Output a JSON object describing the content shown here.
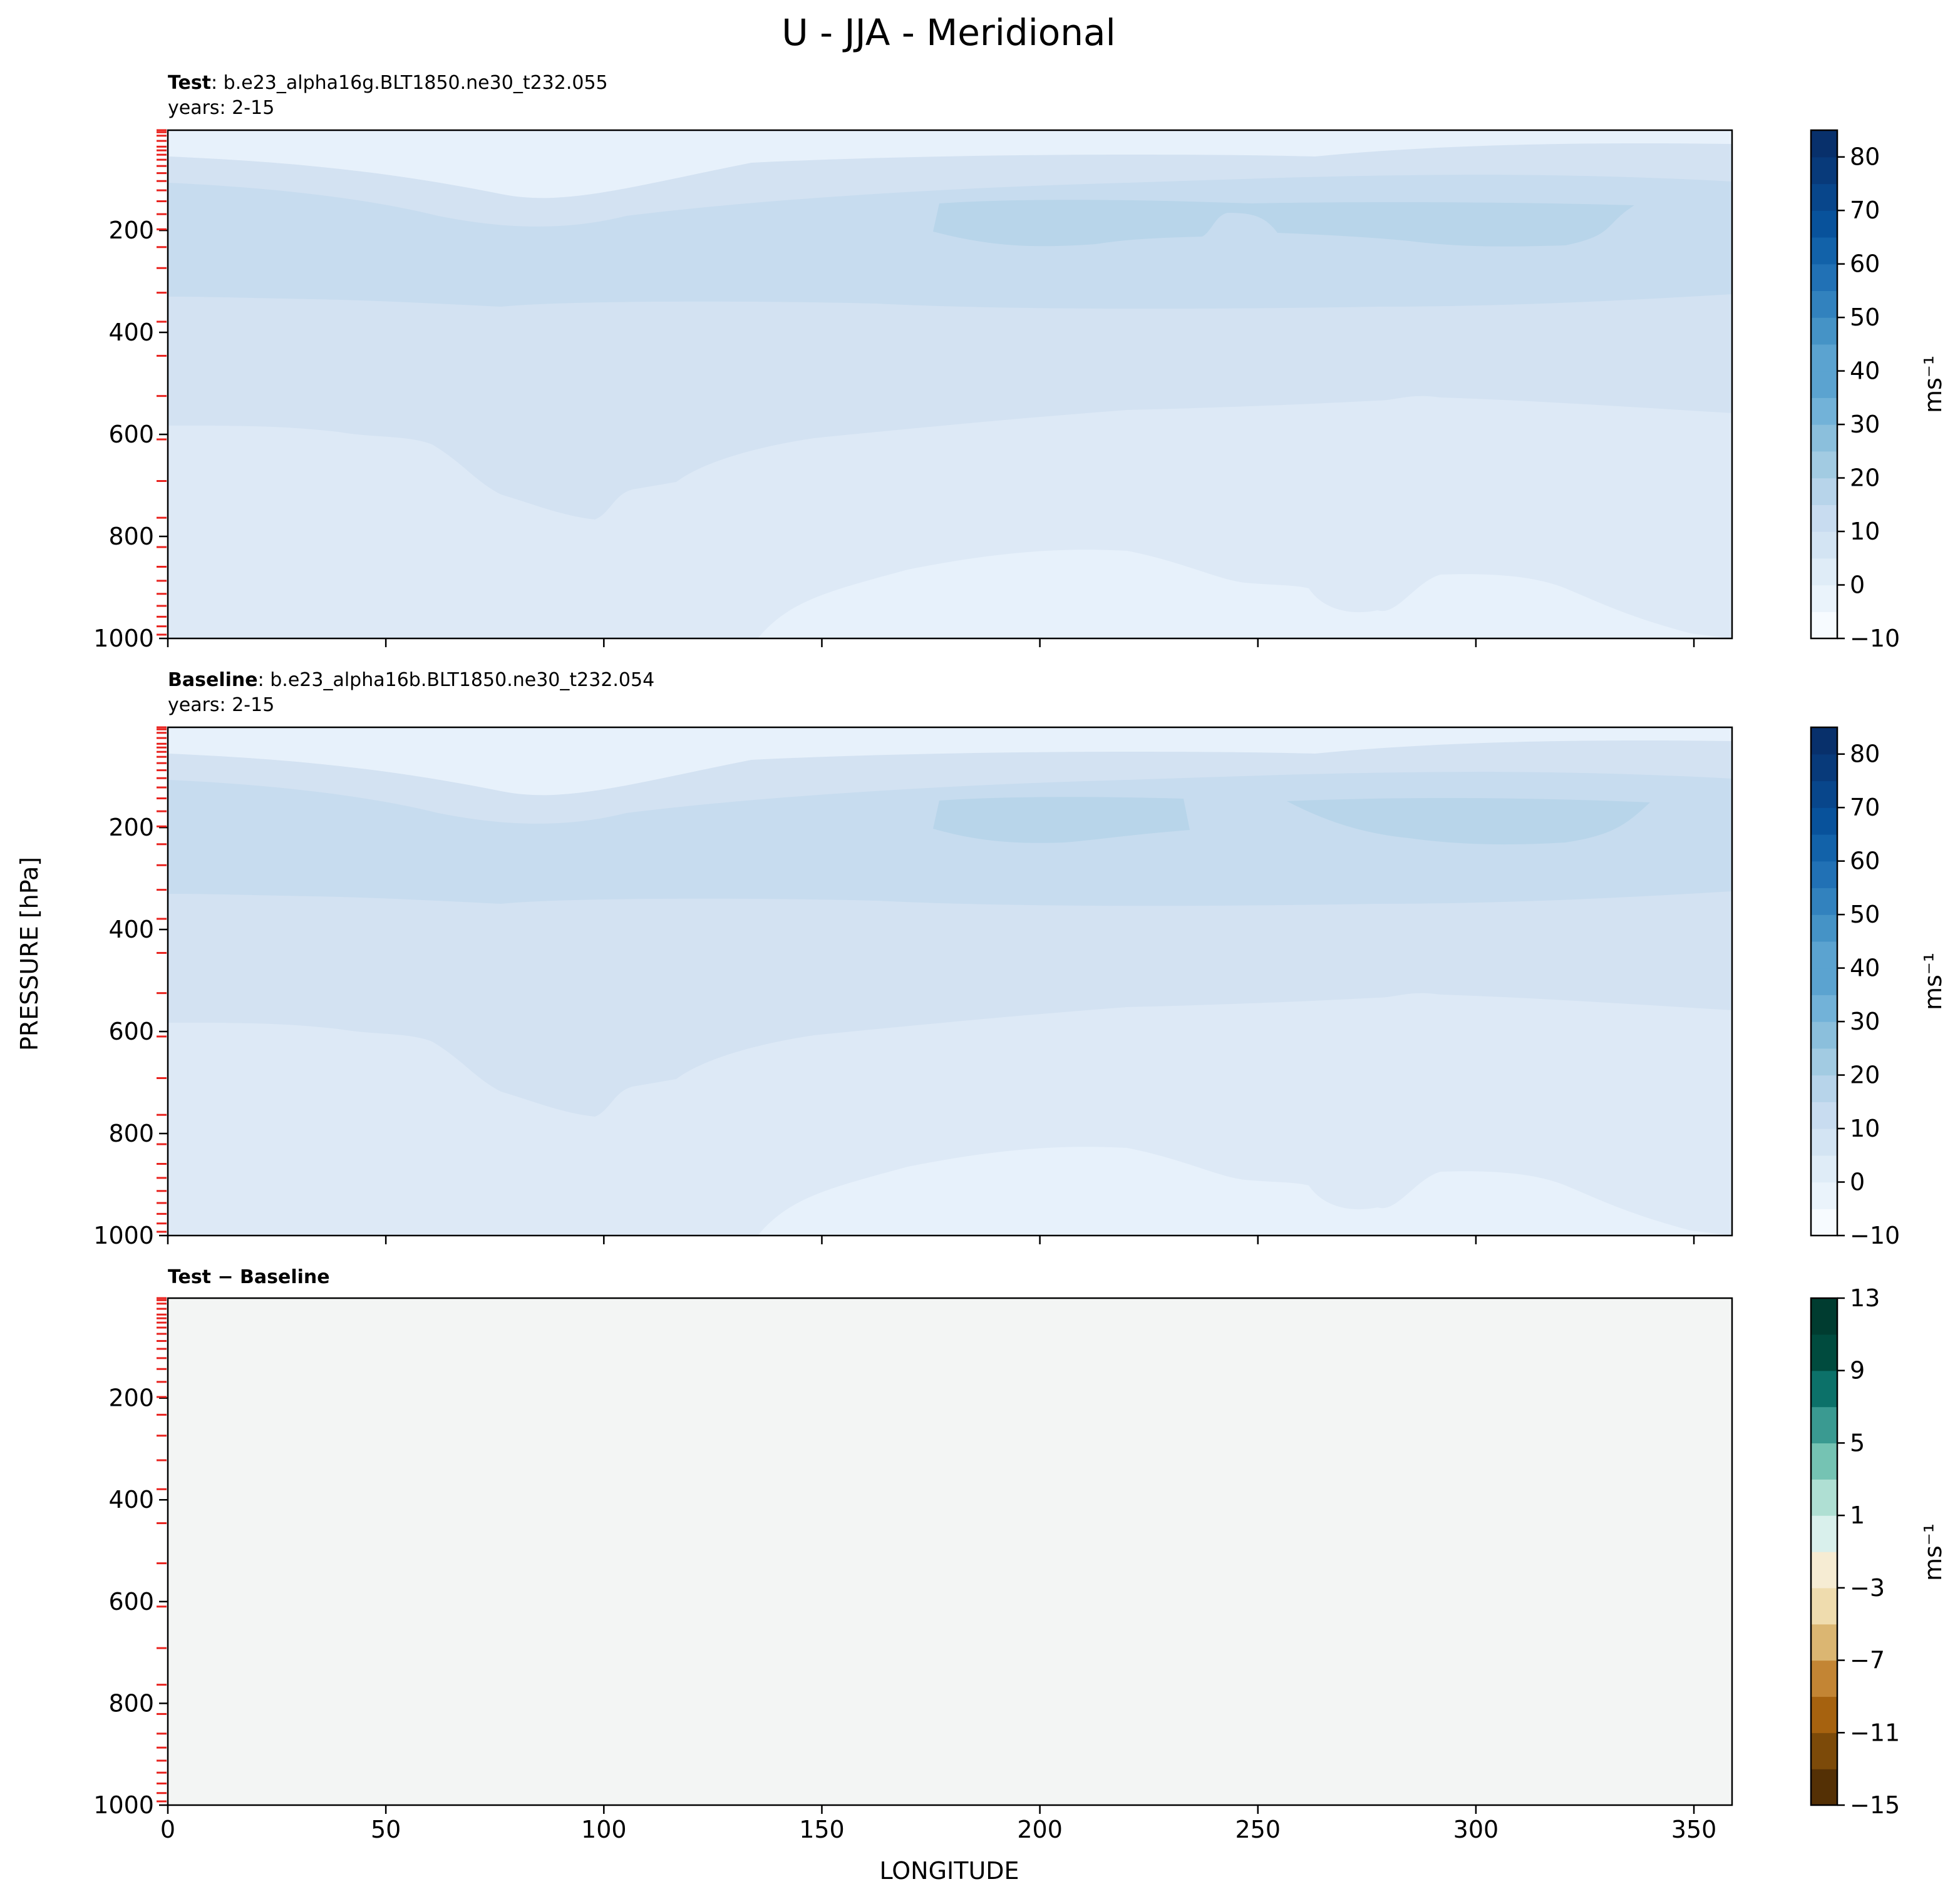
{
  "figure": {
    "title": "U - JJA - Meridional",
    "xlabel": "LONGITUDE",
    "ylabel": "PRESSURE [hPa]"
  },
  "chart_data": [
    {
      "type": "heatmap",
      "label_name": "Test",
      "label_text": ": b.e23_alpha16g.BLT1850.ne30_t232.055",
      "subtitle": "years: 2-15",
      "xlim": [
        0,
        358.75
      ],
      "ylim": [
        1000,
        3.6
      ],
      "x_ticks": [
        0,
        50,
        100,
        150,
        200,
        250,
        300,
        350
      ],
      "y_ticks": [
        200,
        400,
        600,
        800,
        1000
      ],
      "show_x_tick_labels": false,
      "colorbar": {
        "label": "ms⁻¹",
        "levels": [
          -10,
          -5,
          0,
          5,
          10,
          15,
          20,
          25,
          30,
          35,
          40,
          45,
          50,
          55,
          60,
          65,
          70,
          75,
          80,
          85
        ],
        "tick_labels": [
          "−10",
          "0",
          "10",
          "20",
          "30",
          "40",
          "50",
          "60",
          "70",
          "80"
        ],
        "tick_values": [
          -10,
          0,
          10,
          20,
          30,
          40,
          50,
          60,
          70,
          80
        ],
        "colormap": "Blues"
      },
      "bands": [
        {
          "value_range": [
            -5,
            0
          ],
          "color": "#e7f1fb"
        },
        {
          "value_range": [
            0,
            5
          ],
          "color": "#dde9f6"
        },
        {
          "value_range": [
            5,
            10
          ],
          "color": "#d3e2f2"
        },
        {
          "value_range": [
            10,
            15
          ],
          "color": "#c7dcef"
        },
        {
          "value_range": [
            15,
            20
          ],
          "color": "#b8d5ea"
        }
      ]
    },
    {
      "type": "heatmap",
      "label_name": "Baseline",
      "label_text": ": b.e23_alpha16b.BLT1850.ne30_t232.054",
      "subtitle": "years: 2-15",
      "xlim": [
        0,
        358.75
      ],
      "ylim": [
        1000,
        3.6
      ],
      "x_ticks": [
        0,
        50,
        100,
        150,
        200,
        250,
        300,
        350
      ],
      "y_ticks": [
        200,
        400,
        600,
        800,
        1000
      ],
      "show_x_tick_labels": false,
      "colorbar": {
        "label": "ms⁻¹",
        "levels": [
          -10,
          -5,
          0,
          5,
          10,
          15,
          20,
          25,
          30,
          35,
          40,
          45,
          50,
          55,
          60,
          65,
          70,
          75,
          80,
          85
        ],
        "tick_labels": [
          "−10",
          "0",
          "10",
          "20",
          "30",
          "40",
          "50",
          "60",
          "70",
          "80"
        ],
        "tick_values": [
          -10,
          0,
          10,
          20,
          30,
          40,
          50,
          60,
          70,
          80
        ],
        "colormap": "Blues"
      },
      "bands": [
        {
          "value_range": [
            -5,
            0
          ],
          "color": "#e7f1fb"
        },
        {
          "value_range": [
            0,
            5
          ],
          "color": "#dde9f6"
        },
        {
          "value_range": [
            5,
            10
          ],
          "color": "#d3e2f2"
        },
        {
          "value_range": [
            10,
            15
          ],
          "color": "#c7dcef"
        },
        {
          "value_range": [
            15,
            20
          ],
          "color": "#b8d5ea"
        }
      ]
    },
    {
      "type": "heatmap",
      "label_name": "Test − Baseline",
      "label_text": "",
      "subtitle": "",
      "xlim": [
        0,
        358.75
      ],
      "ylim": [
        1000,
        3.6
      ],
      "x_ticks": [
        0,
        50,
        100,
        150,
        200,
        250,
        300,
        350
      ],
      "x_tick_labels": [
        "0",
        "50",
        "100",
        "150",
        "200",
        "250",
        "300",
        "350"
      ],
      "y_ticks": [
        200,
        400,
        600,
        800,
        1000
      ],
      "show_x_tick_labels": true,
      "fill_color": "#f3f5f4",
      "colorbar": {
        "label": "ms⁻¹",
        "levels": [
          -15,
          -13,
          -11,
          -9,
          -7,
          -5,
          -3,
          -1,
          1,
          3,
          5,
          7,
          9,
          11,
          13
        ],
        "tick_labels": [
          "−15",
          "−11",
          "−7",
          "−3",
          "1",
          "5",
          "9",
          "13"
        ],
        "tick_values": [
          -15,
          -11,
          -7,
          -3,
          1,
          5,
          9,
          13
        ],
        "colormap": "BrBG"
      }
    }
  ],
  "level_marks": {
    "color": "#e8221e",
    "pressure_levels": [
      3.6,
      7.6,
      14.4,
      24.6,
      35.9,
      43.2,
      51.7,
      61.5,
      73.8,
      87.8,
      103.3,
      121.5,
      142.9,
      168.2,
      197.9,
      232.8,
      273.9,
      322.2,
      379.1,
      445.9,
      524.7,
      609.8,
      691.4,
      763.4,
      820.9,
      859.5,
      887.0,
      912.6,
      936.2,
      957.5,
      976.3,
      992.6
    ]
  },
  "colors": {
    "blues": [
      "#f7fbff",
      "#eaf3fb",
      "#dfecf7",
      "#d3e4f3",
      "#c8dcf0",
      "#b7d4ea",
      "#a2cbe2",
      "#8bbfdc",
      "#72b2d8",
      "#5ba3d0",
      "#4593c6",
      "#3282be",
      "#2171b5",
      "#1262a9",
      "#08529b",
      "#08468b",
      "#083a7a",
      "#08306b"
    ],
    "brbg": [
      "#543005",
      "#7c4a09",
      "#a6620f",
      "#c38534",
      "#dbb672",
      "#efdcae",
      "#f6ecd3",
      "#f5f5f5",
      "#d9f0ec",
      "#afdfd3",
      "#75c3b3",
      "#3a9a91",
      "#0c7169",
      "#004b3e",
      "#003c30"
    ]
  }
}
